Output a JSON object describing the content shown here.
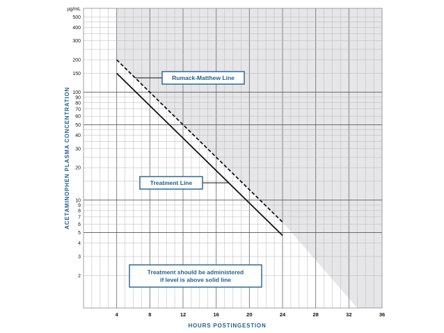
{
  "chart_data": {
    "type": "line",
    "xlabel": "HOURS POSTINGESTION",
    "ylabel": "ACETAMINOPHEN PLASMA CONCENTRATION",
    "y_unit": "µg/mL",
    "y_scale": "log",
    "xlim": [
      0,
      36
    ],
    "ylim": [
      1,
      600
    ],
    "x_ticks": [
      4,
      8,
      12,
      16,
      20,
      24,
      28,
      32,
      36
    ],
    "y_ticks": [
      2,
      3,
      4,
      5,
      6,
      7,
      8,
      9,
      10,
      20,
      30,
      40,
      50,
      60,
      70,
      80,
      90,
      100,
      150,
      200,
      300,
      400,
      500
    ],
    "grid": true,
    "series": [
      {
        "name": "Rumack-Matthew Line",
        "style": "dashed",
        "points": [
          [
            4,
            200
          ],
          [
            24,
            6.25
          ]
        ]
      },
      {
        "name": "Treatment Line",
        "style": "solid",
        "points": [
          [
            4,
            150
          ],
          [
            24,
            4.7
          ]
        ]
      }
    ],
    "shaded_region": {
      "points": [
        [
          4,
          600
        ],
        [
          4,
          200
        ],
        [
          24,
          6.25
        ],
        [
          33,
          1
        ],
        [
          36,
          1
        ],
        [
          36,
          600
        ]
      ],
      "color": "#e6e6e8"
    },
    "annotations": [
      {
        "text": "Rumack-Matthew Line",
        "box": true
      },
      {
        "text": "Treatment Line",
        "box": true
      },
      {
        "text_lines": [
          "Treatment should be administered",
          "if level is above solid line"
        ],
        "box": true
      }
    ],
    "colors": {
      "accent": "#1f5f8b",
      "line": "#111111",
      "grid": "#b5b5b5",
      "shade": "#e6e6e8"
    }
  }
}
